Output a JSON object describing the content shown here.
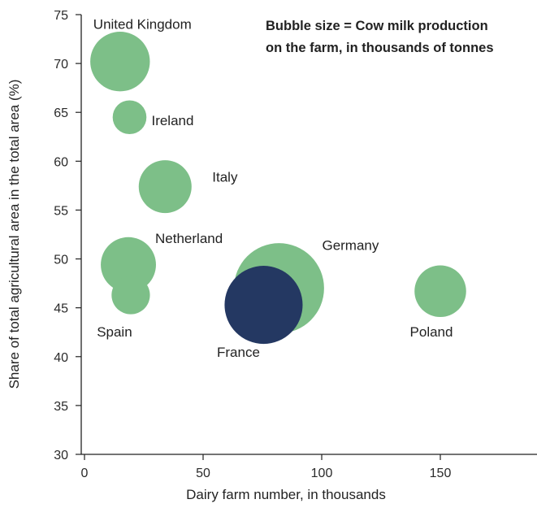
{
  "chart_data": {
    "type": "scatter",
    "title": "",
    "xlabel": "Dairy farm number, in thousands",
    "ylabel": "Share of total agricultural area in the total area (%)",
    "xlim": [
      0,
      190
    ],
    "ylim": [
      30,
      75
    ],
    "xticks": [
      0,
      50,
      100,
      150
    ],
    "yticks": [
      30,
      35,
      40,
      45,
      50,
      55,
      60,
      65,
      70,
      75
    ],
    "annotation": [
      "Bubble size = Cow milk production",
      "on the farm, in thousands of tonnes"
    ],
    "colors": {
      "default": "#7dbf88",
      "highlight": "#243862"
    },
    "points": [
      {
        "label": "United Kingdom",
        "x": 15,
        "y": 70.2,
        "size": 14000,
        "color": "#7dbf88"
      },
      {
        "label": "Ireland",
        "x": 19,
        "y": 64.5,
        "size": 4500,
        "color": "#7dbf88"
      },
      {
        "label": "Italy",
        "x": 34,
        "y": 57.4,
        "size": 11000,
        "color": "#7dbf88"
      },
      {
        "label": "Netherland",
        "x": 18.5,
        "y": 49.4,
        "size": 12000,
        "color": "#7dbf88"
      },
      {
        "label": "Spain",
        "x": 19.5,
        "y": 46.3,
        "size": 5800,
        "color": "#7dbf88"
      },
      {
        "label": "Germany",
        "x": 82,
        "y": 47,
        "size": 32000,
        "color": "#7dbf88"
      },
      {
        "label": "France",
        "x": 75.5,
        "y": 45.3,
        "size": 24000,
        "color": "#243862"
      },
      {
        "label": "Poland",
        "x": 150,
        "y": 46.7,
        "size": 10500,
        "color": "#7dbf88"
      }
    ]
  }
}
